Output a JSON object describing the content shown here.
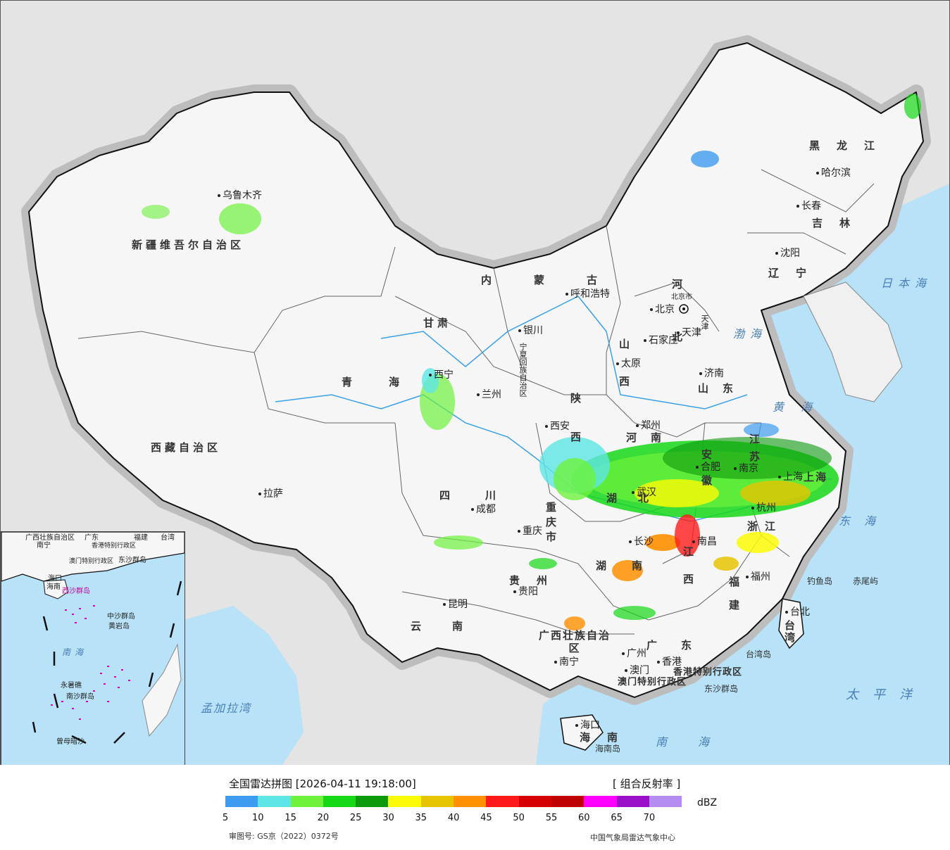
{
  "map": {
    "provinces": [
      {
        "name": "新疆维吾尔自治区"
      },
      {
        "name": "西藏自治区"
      },
      {
        "name": "青海"
      },
      {
        "name": "甘肃"
      },
      {
        "name": "内蒙古"
      },
      {
        "name": "黑龙江"
      },
      {
        "name": "吉林"
      },
      {
        "name": "辽宁"
      },
      {
        "name": "河北"
      },
      {
        "name": "山西"
      },
      {
        "name": "山东"
      },
      {
        "name": "河南"
      },
      {
        "name": "陕西"
      },
      {
        "name": "四川"
      },
      {
        "name": "重庆市"
      },
      {
        "name": "湖北"
      },
      {
        "name": "安徽"
      },
      {
        "name": "江苏"
      },
      {
        "name": "浙江"
      },
      {
        "name": "江西"
      },
      {
        "name": "湖南"
      },
      {
        "name": "贵州"
      },
      {
        "name": "云南"
      },
      {
        "name": "广西壮族自治区"
      },
      {
        "name": "广东"
      },
      {
        "name": "福建"
      },
      {
        "name": "台湾"
      },
      {
        "name": "海南"
      },
      {
        "name": "宁夏回族自治区"
      },
      {
        "name": "上海"
      },
      {
        "name": "天津"
      },
      {
        "name": "北京市"
      },
      {
        "name": "香港特别行政区"
      },
      {
        "name": "澳门特别行政区"
      }
    ],
    "cities": [
      {
        "name": "乌鲁木齐"
      },
      {
        "name": "拉萨"
      },
      {
        "name": "西宁"
      },
      {
        "name": "兰州"
      },
      {
        "name": "银川"
      },
      {
        "name": "呼和浩特"
      },
      {
        "name": "北京"
      },
      {
        "name": "天津"
      },
      {
        "name": "石家庄"
      },
      {
        "name": "太原"
      },
      {
        "name": "济南"
      },
      {
        "name": "郑州"
      },
      {
        "name": "西安"
      },
      {
        "name": "成都"
      },
      {
        "name": "重庆"
      },
      {
        "name": "武汉"
      },
      {
        "name": "合肥"
      },
      {
        "name": "南京"
      },
      {
        "name": "上海"
      },
      {
        "name": "杭州"
      },
      {
        "name": "南昌"
      },
      {
        "name": "长沙"
      },
      {
        "name": "贵阳"
      },
      {
        "name": "昆明"
      },
      {
        "name": "南宁"
      },
      {
        "name": "广州"
      },
      {
        "name": "香港"
      },
      {
        "name": "澳门"
      },
      {
        "name": "福州"
      },
      {
        "name": "台北"
      },
      {
        "name": "海口"
      },
      {
        "name": "沈阳"
      },
      {
        "name": "长春"
      },
      {
        "name": "哈尔滨"
      }
    ],
    "seas": [
      "日本海",
      "渤海",
      "黄海",
      "东海",
      "太平洋",
      "南海",
      "孟加拉湾"
    ],
    "islands": [
      "钓鱼岛",
      "赤尾屿",
      "台湾岛",
      "东沙群岛",
      "海南岛"
    ],
    "inset": {
      "labels": [
        "广西壮族自治区",
        "广东",
        "福建",
        "台湾",
        "南宁",
        "香港特别行政区",
        "澳门特别行政区",
        "东沙群岛",
        "海口",
        "海南",
        "西沙群岛",
        "中沙群岛",
        "黄岩岛",
        "南海",
        "永暑礁",
        "南沙群岛",
        "曾母暗沙"
      ]
    }
  },
  "legend": {
    "title": "全国雷达拼图 [2026-04-11 19:18:00]",
    "product": "[ 组合反射率 ]",
    "unit": "dBZ",
    "ticks": [
      "5",
      "10",
      "15",
      "20",
      "25",
      "30",
      "35",
      "40",
      "45",
      "50",
      "55",
      "60",
      "65",
      "70"
    ],
    "colors": [
      "#3d9cf0",
      "#5ee6e6",
      "#6ef23c",
      "#17d817",
      "#0c9a0c",
      "#fbfb05",
      "#e6c400",
      "#ff9000",
      "#ff1a1a",
      "#d60000",
      "#c00000",
      "#ff00ff",
      "#9a10c8",
      "#b48cf2"
    ],
    "approval": "审图号: GS京（2022）0372号",
    "agency": "中国气象局雷达气象中心"
  }
}
